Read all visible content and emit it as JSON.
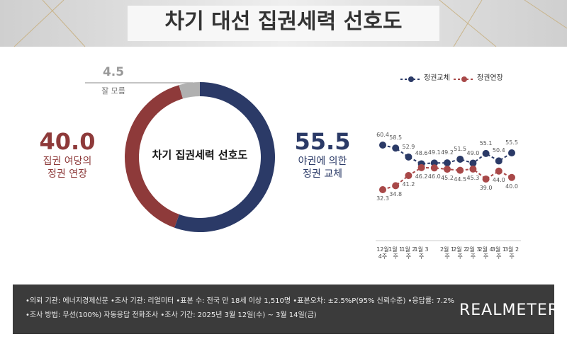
{
  "header": {
    "title": "차기 대선 집권세력 선호도"
  },
  "chart_data": [
    {
      "type": "donut",
      "title": "차기 집권세력 선호도",
      "categories": [
        "야권에 의한\n정권 교체",
        "집권 여당의\n정권 연장",
        "잘 모름"
      ],
      "values": [
        55.5,
        40,
        4.5
      ],
      "value_labels": [
        "55.5",
        "40.0",
        "4.5"
      ],
      "colors": [
        "#2b3a67",
        "#8e3a3a",
        "#b0b0b0"
      ]
    },
    {
      "type": "line",
      "categories": [
        "12월 4주",
        "1월 1주",
        "1월 2주",
        "1월 3주",
        null,
        "2월 1주",
        "2월 2주",
        "2월 3주",
        "2월 4주",
        "3월 1주",
        "3월 2주"
      ],
      "series": [
        {
          "name": "정권교체",
          "color": "#2b3a67",
          "values": [
            60.4,
            58.5,
            52.9,
            48.6,
            49.1,
            49.2,
            51.5,
            49.0,
            55.1,
            50.4,
            55.5
          ],
          "value_labels": [
            "60.4",
            "58.5",
            "52.9",
            "48.6",
            "49.1",
            "49.2",
            "51.5",
            "49.0",
            "55.1",
            "50.4",
            "55.5"
          ]
        },
        {
          "name": "정권연장",
          "color": "#a84848",
          "values": [
            32.3,
            34.8,
            41.2,
            46.2,
            46.0,
            45.2,
            44.5,
            45.3,
            39.0,
            44.0,
            40.0
          ],
          "value_labels": [
            "32.3",
            "34.8",
            "41.2",
            "46.2",
            "46.0",
            "45.2",
            "44.5",
            "45.3",
            "39.0",
            "44.0",
            "40.0"
          ]
        }
      ]
    }
  ],
  "footer": {
    "notes": [
      "•의뢰 기관: 에너지경제신문 •조사 기관: 리얼미터 •표본 수: 전국 만 18세 이상 1,510명 •표본오차: ±2.5%P(95% 신뢰수준) •응답률: 7.2%",
      "•조사 방법: 무선(100%) 자동응답 전화조사 •조사 기간: 2025년 3월 12일(수) ~ 3월 14일(금)"
    ],
    "logo": "REALMETER"
  }
}
